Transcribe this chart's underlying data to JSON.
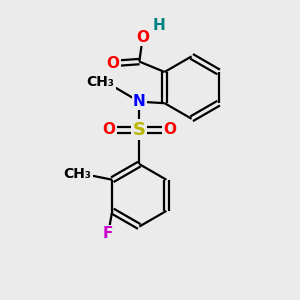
{
  "background_color": "#ebebeb",
  "bond_color": "#000000",
  "atom_colors": {
    "O": "#ff0000",
    "N": "#0000ff",
    "S": "#b8b800",
    "F": "#cc00cc",
    "H": "#008080",
    "C": "#000000"
  },
  "font_size_atoms": 11,
  "font_size_small": 10,
  "lw": 1.6
}
